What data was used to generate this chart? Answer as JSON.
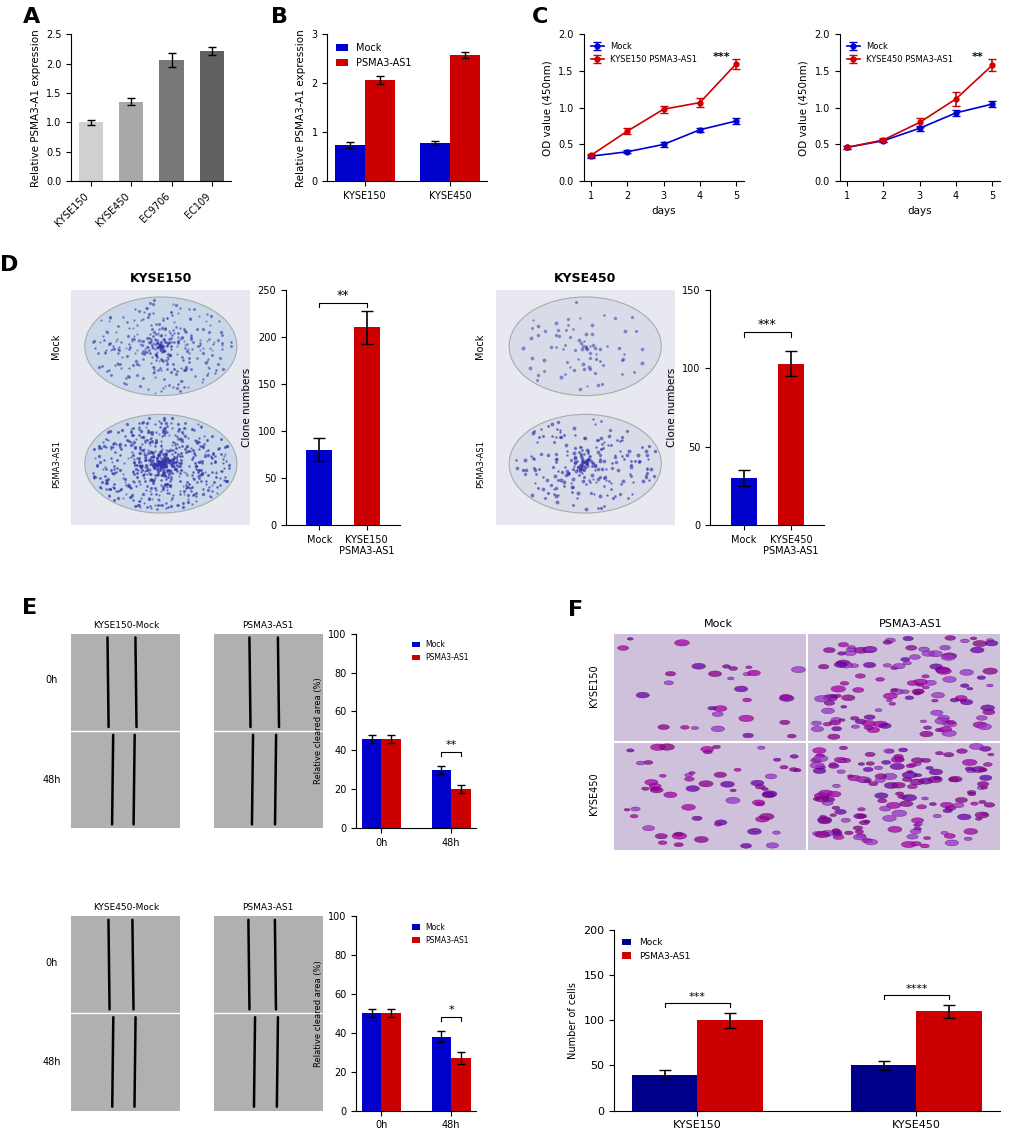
{
  "panel_A": {
    "categories": [
      "KYSE150",
      "KYSE450",
      "EC9706",
      "EC109"
    ],
    "values": [
      1.0,
      1.35,
      2.06,
      2.22
    ],
    "errors": [
      0.04,
      0.06,
      0.12,
      0.07
    ],
    "colors": [
      "#d0d0d0",
      "#a8a8a8",
      "#787878",
      "#606060"
    ],
    "ylabel": "Relative PSMA3-A1 expression",
    "ylim": [
      0,
      2.5
    ],
    "yticks": [
      0.0,
      0.5,
      1.0,
      1.5,
      2.0,
      2.5
    ]
  },
  "panel_B": {
    "categories": [
      "KYSE150",
      "KYSE450"
    ],
    "mock_values": [
      0.73,
      0.78
    ],
    "mock_errors": [
      0.06,
      0.05
    ],
    "psma_values": [
      2.07,
      2.58
    ],
    "psma_errors": [
      0.08,
      0.06
    ],
    "mock_color": "#0000cc",
    "psma_color": "#cc0000",
    "ylabel": "Relative PSMA3-A1 expression",
    "ylim": [
      0,
      3.0
    ],
    "yticks": [
      0,
      1,
      2,
      3
    ]
  },
  "panel_C_left": {
    "days": [
      1,
      2,
      3,
      4,
      5
    ],
    "mock_values": [
      0.34,
      0.4,
      0.5,
      0.7,
      0.82
    ],
    "mock_errors": [
      0.02,
      0.02,
      0.03,
      0.03,
      0.04
    ],
    "psma_values": [
      0.35,
      0.68,
      0.98,
      1.07,
      1.6
    ],
    "psma_errors": [
      0.02,
      0.04,
      0.05,
      0.06,
      0.07
    ],
    "mock_color": "#0000cc",
    "psma_color": "#cc0000",
    "ylabel": "OD value (450nm)",
    "xlabel": "days",
    "ylim": [
      0.0,
      2.0
    ],
    "yticks": [
      0.0,
      0.5,
      1.0,
      1.5,
      2.0
    ],
    "legend_label": "KYSE150 PSMA3-AS1",
    "sig": "***"
  },
  "panel_C_right": {
    "days": [
      1,
      2,
      3,
      4,
      5
    ],
    "mock_values": [
      0.46,
      0.55,
      0.72,
      0.93,
      1.05
    ],
    "mock_errors": [
      0.02,
      0.02,
      0.03,
      0.04,
      0.04
    ],
    "psma_values": [
      0.46,
      0.56,
      0.8,
      1.12,
      1.58
    ],
    "psma_errors": [
      0.02,
      0.03,
      0.06,
      0.1,
      0.08
    ],
    "mock_color": "#0000cc",
    "psma_color": "#cc0000",
    "ylabel": "OD value (450nm)",
    "xlabel": "days",
    "ylim": [
      0.0,
      2.0
    ],
    "yticks": [
      0.0,
      0.5,
      1.0,
      1.5,
      2.0
    ],
    "legend_label": "KYSE450 PSMA3-AS1",
    "sig": "**"
  },
  "panel_D_left_bar": {
    "values": [
      80,
      210
    ],
    "errors": [
      12,
      18
    ],
    "colors": [
      "#0000cc",
      "#cc0000"
    ],
    "ylabel": "Clone numbers",
    "ylim": [
      0,
      250
    ],
    "yticks": [
      0,
      50,
      100,
      150,
      200,
      250
    ],
    "xlabels": [
      "Mock",
      "KYSE150\nPSMA3-AS1"
    ],
    "sig": "**"
  },
  "panel_D_right_bar": {
    "values": [
      30,
      103
    ],
    "errors": [
      5,
      8
    ],
    "colors": [
      "#0000cc",
      "#cc0000"
    ],
    "ylabel": "Clone numbers",
    "ylim": [
      0,
      150
    ],
    "yticks": [
      0,
      50,
      100,
      150
    ],
    "xlabels": [
      "Mock",
      "KYSE450\nPSMA3-AS1"
    ],
    "sig": "***"
  },
  "panel_E_top_bar": {
    "categories": [
      "0h",
      "48h"
    ],
    "mock_values": [
      46,
      30
    ],
    "mock_errors": [
      2,
      2
    ],
    "psma_values": [
      46,
      20
    ],
    "psma_errors": [
      2,
      2
    ],
    "mock_color": "#0000cc",
    "psma_color": "#cc0000",
    "ylabel": "Relative cleared area (%)",
    "ylim": [
      0,
      100
    ],
    "yticks": [
      0,
      20,
      40,
      60,
      80,
      100
    ],
    "sig": "**"
  },
  "panel_E_bottom_bar": {
    "categories": [
      "0h",
      "48h"
    ],
    "mock_values": [
      50,
      38
    ],
    "mock_errors": [
      2,
      3
    ],
    "psma_values": [
      50,
      27
    ],
    "psma_errors": [
      2,
      3
    ],
    "mock_color": "#0000cc",
    "psma_color": "#cc0000",
    "ylabel": "Relative cleared area (%)",
    "ylim": [
      0,
      100
    ],
    "yticks": [
      0,
      20,
      40,
      60,
      80,
      100
    ],
    "sig": "*"
  },
  "panel_F_bar": {
    "group_labels": [
      "KYSE150",
      "KYSE450"
    ],
    "mock_values": [
      40,
      50
    ],
    "mock_errors": [
      5,
      5
    ],
    "psma_values": [
      100,
      110
    ],
    "psma_errors": [
      8,
      7
    ],
    "mock_color": "#00008B",
    "psma_color": "#cc0000",
    "ylabel": "Number of cells",
    "ylim": [
      0,
      200
    ],
    "yticks": [
      0,
      50,
      100,
      150,
      200
    ],
    "sig_left": "***",
    "sig_right": "****"
  },
  "label_fontsize": 16,
  "tick_fontsize": 8,
  "axis_label_fontsize": 7.5,
  "legend_fontsize": 7,
  "bg_color": "#ffffff"
}
